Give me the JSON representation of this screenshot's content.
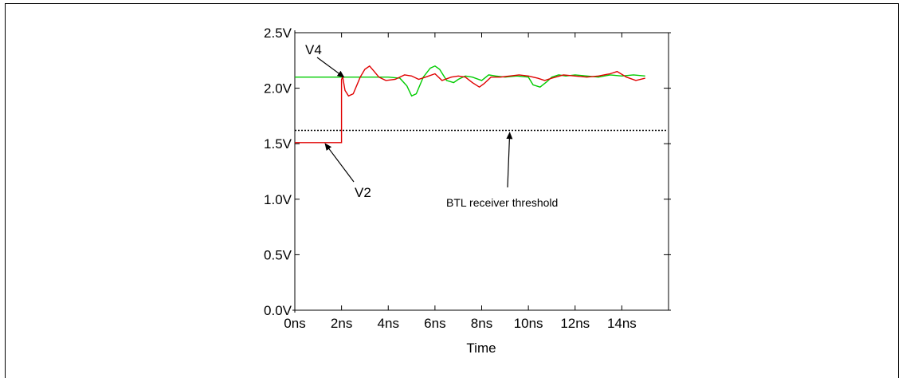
{
  "chart_data": {
    "type": "line",
    "xlabel": "Time",
    "ylabel": "",
    "xlim": [
      0,
      16
    ],
    "ylim": [
      0.0,
      2.5
    ],
    "x_ticks": [
      0,
      2,
      4,
      6,
      8,
      10,
      12,
      14,
      16
    ],
    "x_tick_labels": [
      "0ns",
      "2ns",
      "4ns",
      "6ns",
      "8ns",
      "10ns",
      "12ns",
      "14ns",
      ""
    ],
    "y_ticks": [
      0.0,
      0.5,
      1.0,
      1.5,
      2.0,
      2.5
    ],
    "y_tick_labels": [
      "0.0V",
      "0.5V",
      "1.0V",
      "1.5V",
      "2.0V",
      "2.5V"
    ],
    "grid": false,
    "series": [
      {
        "name": "V4",
        "color": "#00cc00",
        "x": [
          0,
          4.0,
          4.5,
          4.8,
          5.0,
          5.2,
          5.5,
          5.8,
          6.0,
          6.2,
          6.5,
          6.8,
          7.0,
          7.3,
          7.6,
          8.0,
          8.3,
          8.6,
          9.0,
          9.5,
          10.0,
          10.2,
          10.5,
          10.8,
          11.0,
          11.3,
          11.6,
          12.0,
          12.5,
          13.0,
          13.5,
          14.0,
          14.5,
          15.0
        ],
        "y": [
          2.1,
          2.1,
          2.09,
          2.02,
          1.93,
          1.95,
          2.1,
          2.18,
          2.2,
          2.17,
          2.07,
          2.05,
          2.08,
          2.11,
          2.1,
          2.07,
          2.12,
          2.11,
          2.1,
          2.11,
          2.1,
          2.03,
          2.01,
          2.06,
          2.1,
          2.12,
          2.11,
          2.12,
          2.11,
          2.1,
          2.12,
          2.11,
          2.12,
          2.11
        ]
      },
      {
        "name": "V2",
        "color": "#e00000",
        "x": [
          0,
          2.0,
          2.0,
          2.05,
          2.15,
          2.3,
          2.5,
          2.8,
          3.0,
          3.2,
          3.4,
          3.6,
          3.9,
          4.3,
          4.7,
          5.0,
          5.3,
          5.6,
          6.0,
          6.3,
          6.7,
          7.0,
          7.3,
          7.6,
          7.9,
          8.1,
          8.4,
          8.8,
          9.2,
          9.6,
          10.0,
          10.4,
          10.7,
          11.0,
          11.5,
          12.0,
          12.5,
          13.0,
          13.5,
          13.8,
          14.2,
          14.6,
          15.0
        ],
        "y": [
          1.51,
          1.51,
          2.08,
          2.1,
          1.98,
          1.93,
          1.95,
          2.1,
          2.17,
          2.2,
          2.15,
          2.1,
          2.07,
          2.08,
          2.12,
          2.11,
          2.08,
          2.1,
          2.13,
          2.07,
          2.1,
          2.11,
          2.1,
          2.05,
          2.01,
          2.04,
          2.1,
          2.1,
          2.11,
          2.12,
          2.11,
          2.09,
          2.07,
          2.09,
          2.12,
          2.11,
          2.1,
          2.11,
          2.13,
          2.15,
          2.1,
          2.07,
          2.09
        ]
      }
    ],
    "threshold": {
      "y": 1.62,
      "x_start": 0,
      "x_end": 16,
      "style": "dashed",
      "color": "#000000"
    },
    "annotations": [
      {
        "text": "V4",
        "arrow_to": [
          2.1,
          2.1
        ]
      },
      {
        "text": "V2",
        "arrow_to": [
          1.3,
          1.5
        ]
      },
      {
        "text": "BTL receiver threshold",
        "arrow_to": [
          9.2,
          1.6
        ]
      }
    ]
  }
}
